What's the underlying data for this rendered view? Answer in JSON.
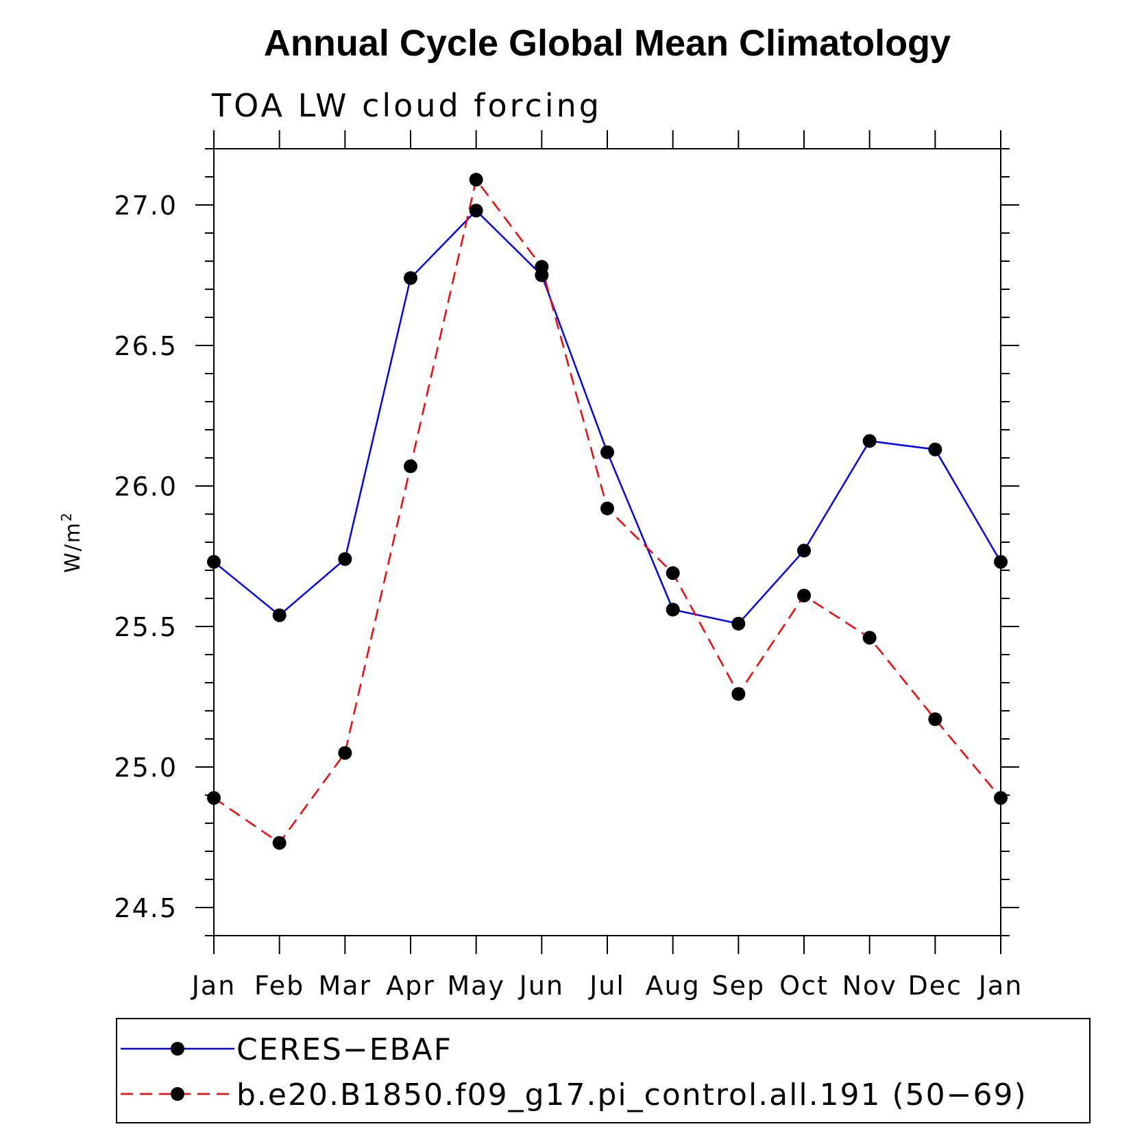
{
  "chart_data": {
    "type": "line",
    "title": "Annual Cycle Global Mean Climatology",
    "subtitle": "TOA LW cloud forcing",
    "ylabel": "W/m",
    "ylabel_superscript": "2",
    "xlabel": "",
    "categories": [
      "Jan",
      "Feb",
      "Mar",
      "Apr",
      "May",
      "Jun",
      "Jul",
      "Aug",
      "Sep",
      "Oct",
      "Nov",
      "Dec",
      "Jan"
    ],
    "ylim": [
      24.4,
      27.2
    ],
    "yticks": [
      24.5,
      25.0,
      25.5,
      26.0,
      26.5,
      27.0
    ],
    "ytick_labels": [
      "24.5",
      "25.0",
      "25.5",
      "26.0",
      "26.5",
      "27.0"
    ],
    "grid": false,
    "legend_position": "bottom",
    "series": [
      {
        "name": "CERES−EBAF",
        "color": "#0000ff",
        "line_style": "solid",
        "marker": "filled-circle",
        "values": [
          25.73,
          25.54,
          25.74,
          26.74,
          26.98,
          26.75,
          26.12,
          25.56,
          25.51,
          25.77,
          26.16,
          26.13,
          25.73
        ]
      },
      {
        "name": "b.e20.B1850.f09_g17.pi_control.all.191 (50−69)",
        "color": "#ff0000",
        "line_style": "dashed",
        "marker": "filled-circle",
        "values": [
          24.89,
          24.73,
          25.05,
          26.07,
          27.09,
          26.78,
          25.92,
          25.69,
          25.26,
          25.61,
          25.46,
          25.17,
          24.89
        ]
      }
    ]
  }
}
